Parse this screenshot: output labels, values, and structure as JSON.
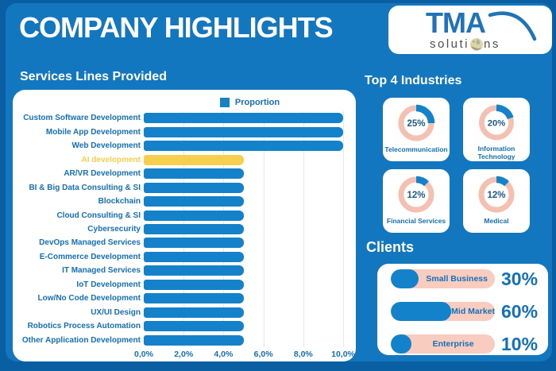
{
  "header": {
    "title": "COMPANY HIGHLIGHTS",
    "logo": {
      "brand": "TMA",
      "word_prefix": "soluti",
      "word_suffix": "ns"
    }
  },
  "colors": {
    "background_outer": "#0a5fa2",
    "background_panel": "#1377bf",
    "bar_blue": "#1382ca",
    "highlight_yellow": "#f6cf4c",
    "label_blue": "#1470b8",
    "donut_ring_pink": "#f4c0b1",
    "pill_pink": "#f8ccbf",
    "donut_value_blue": "#1d5a8c",
    "logo_blue": "#2173b8"
  },
  "chart_data": [
    {
      "id": "services-bars",
      "type": "bar",
      "orientation": "horizontal",
      "title": "Services Lines Provided",
      "legend": [
        "Proportion"
      ],
      "legend_position": "top-center",
      "grid": true,
      "unit": "%",
      "categories": [
        "Custom Software Development",
        "Mobile App Development",
        "Web Development",
        "AI development",
        "AR/VR Development",
        "BI & Big Data Consulting & SI",
        "Blockchain",
        "Cloud Consulting & SI",
        "Cybersecurity",
        "DevOps Managed Services",
        "E-Commerce Development",
        "IT Managed Services",
        "IoT Development",
        "Low/No Code Development",
        "UX/UI Design",
        "Robotics Process Automation",
        "Other Application Development"
      ],
      "values": [
        10.0,
        10.0,
        10.0,
        5.0,
        5.0,
        5.0,
        5.0,
        5.0,
        5.0,
        5.0,
        5.0,
        5.0,
        5.0,
        5.0,
        5.0,
        5.0,
        5.0
      ],
      "highlight_index": 3,
      "xlim": [
        0,
        10.6
      ],
      "xticks": [
        0,
        2,
        4,
        6,
        8,
        10
      ],
      "xtick_labels": [
        "0,0%",
        "2,0%",
        "4,0%",
        "6,0%",
        "8,0%",
        "10,0%"
      ]
    },
    {
      "id": "top-industries",
      "type": "pie",
      "variant": "donut-grid",
      "title": "Top 4 Industries",
      "slices": [
        {
          "label": "Telecommunication",
          "value": 25,
          "value_label": "25%"
        },
        {
          "label": "Information Technology",
          "value": 20,
          "value_label": "20%"
        },
        {
          "label": "Financial Services",
          "value": 12,
          "value_label": "12%"
        },
        {
          "label": "Medical",
          "value": 12,
          "value_label": "12%"
        }
      ]
    },
    {
      "id": "clients-split",
      "type": "bar",
      "variant": "progress-pills",
      "title": "Clients",
      "categories": [
        "Small Business",
        "Mid Market",
        "Enterprise"
      ],
      "values": [
        30,
        60,
        10
      ],
      "value_labels": [
        "30%",
        "60%",
        "10%"
      ],
      "fill_display_pct": [
        27,
        61,
        20
      ]
    }
  ]
}
